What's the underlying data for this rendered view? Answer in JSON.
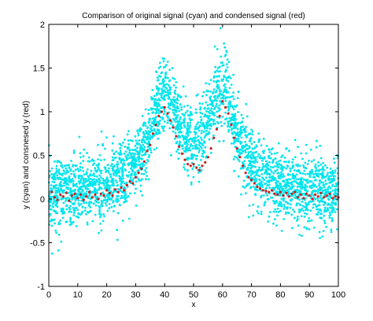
{
  "chart_data": {
    "type": "scatter",
    "title": "Comparison of original signal (cyan) and condensed signal (red)",
    "xlabel": "x",
    "ylabel": "y (cyan) and consnesed y (red)",
    "xlim": [
      0,
      100
    ],
    "ylim": [
      -1,
      2
    ],
    "x_ticks": [
      "0",
      "10",
      "20",
      "30",
      "40",
      "50",
      "60",
      "70",
      "80",
      "90",
      "100"
    ],
    "y_ticks": [
      "-1",
      "-0.5",
      "0",
      "0.5",
      "1",
      "1.5",
      "2"
    ],
    "grid": false,
    "legend": "none",
    "colors": {
      "original": "#00e5ee",
      "condensed": "#cc1f1f"
    },
    "original_signal": {
      "x_range": [
        0,
        100
      ],
      "point_count": 3000,
      "noise_std": 0.2,
      "profile_peaks": [
        {
          "center": 40,
          "height": 1.05
        },
        {
          "center": 60,
          "height": 1.12
        }
      ]
    },
    "condensed_signal": {
      "x": [
        1,
        2,
        3,
        4,
        5,
        6,
        7,
        8,
        9,
        10,
        11,
        12,
        13,
        14,
        15,
        16,
        17,
        18,
        19,
        20,
        21,
        22,
        23,
        24,
        25,
        26,
        27,
        28,
        29,
        30,
        31,
        32,
        33,
        34,
        35,
        36,
        37,
        38,
        39,
        40,
        41,
        42,
        43,
        44,
        45,
        46,
        47,
        48,
        49,
        50,
        51,
        52,
        53,
        54,
        55,
        56,
        57,
        58,
        59,
        60,
        61,
        62,
        63,
        64,
        65,
        66,
        67,
        68,
        69,
        70,
        71,
        72,
        73,
        74,
        75,
        76,
        77,
        78,
        79,
        80,
        81,
        82,
        83,
        84,
        85,
        86,
        87,
        88,
        89,
        90,
        91,
        92,
        93,
        94,
        95,
        96,
        97,
        98,
        99,
        100
      ],
      "y": [
        0.08,
        0.02,
        -0.01,
        0.05,
        0.03,
        0.07,
        -0.02,
        0.04,
        0.06,
        0.01,
        0.05,
        -0.01,
        0.03,
        0.08,
        0.02,
        0.05,
        0.0,
        0.06,
        0.04,
        0.1,
        0.07,
        0.04,
        0.11,
        0.08,
        0.13,
        0.1,
        0.16,
        0.2,
        0.18,
        0.25,
        0.3,
        0.35,
        0.43,
        0.55,
        0.62,
        0.75,
        0.85,
        0.95,
        1.0,
        1.05,
        0.98,
        0.9,
        0.82,
        0.72,
        0.6,
        0.52,
        0.45,
        0.4,
        0.38,
        0.4,
        0.36,
        0.33,
        0.38,
        0.42,
        0.48,
        0.58,
        0.7,
        0.8,
        0.95,
        1.12,
        1.05,
        0.98,
        0.85,
        0.7,
        0.58,
        0.48,
        0.38,
        0.3,
        0.25,
        0.22,
        0.18,
        0.14,
        0.12,
        0.1,
        0.09,
        0.08,
        0.1,
        0.06,
        0.05,
        0.08,
        0.04,
        0.07,
        0.03,
        0.06,
        0.08,
        0.02,
        0.05,
        0.01,
        0.06,
        0.04,
        0.0,
        0.05,
        0.03,
        0.07,
        0.02,
        0.04,
        0.06,
        0.01,
        0.03,
        0.02
      ]
    }
  }
}
